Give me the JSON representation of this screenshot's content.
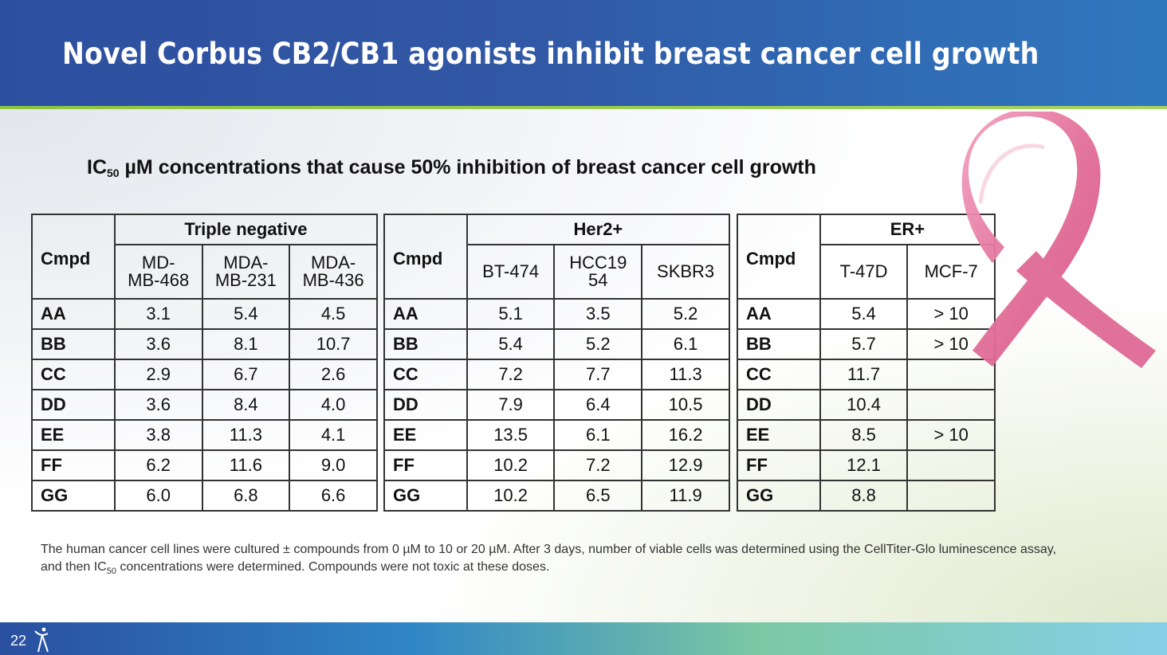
{
  "slide": {
    "title": "Novel Corbus CB2/CB1 agonists inhibit breast cancer cell growth",
    "subtitle_prefix": "IC",
    "subtitle_sub": "50",
    "subtitle_rest": " µM concentrations that cause 50% inhibition of breast cancer cell growth",
    "page_number": "22"
  },
  "tables": {
    "cmpd_label": "Cmpd",
    "compounds": [
      "AA",
      "BB",
      "CC",
      "DD",
      "EE",
      "FF",
      "GG"
    ],
    "triple_negative": {
      "group": "Triple negative",
      "columns": [
        "MD-\nMB-468",
        "MDA-\nMB-231",
        "MDA-\nMB-436"
      ],
      "rows": [
        [
          "3.1",
          "5.4",
          "4.5"
        ],
        [
          "3.6",
          "8.1",
          "10.7"
        ],
        [
          "2.9",
          "6.7",
          "2.6"
        ],
        [
          "3.6",
          "8.4",
          "4.0"
        ],
        [
          "3.8",
          "11.3",
          "4.1"
        ],
        [
          "6.2",
          "11.6",
          "9.0"
        ],
        [
          "6.0",
          "6.8",
          "6.6"
        ]
      ]
    },
    "her2": {
      "group": "Her2+",
      "columns": [
        "BT-474",
        "HCC19\n54",
        "SKBR3"
      ],
      "rows": [
        [
          "5.1",
          "3.5",
          "5.2"
        ],
        [
          "5.4",
          "5.2",
          "6.1"
        ],
        [
          "7.2",
          "7.7",
          "11.3"
        ],
        [
          "7.9",
          "6.4",
          "10.5"
        ],
        [
          "13.5",
          "6.1",
          "16.2"
        ],
        [
          "10.2",
          "7.2",
          "12.9"
        ],
        [
          "10.2",
          "6.5",
          "11.9"
        ]
      ]
    },
    "er": {
      "group": "ER+",
      "columns": [
        "T-47D",
        "MCF-7"
      ],
      "rows": [
        [
          "5.4",
          "> 10"
        ],
        [
          "5.7",
          "> 10"
        ],
        [
          "11.7",
          ""
        ],
        [
          "10.4",
          ""
        ],
        [
          "8.5",
          "> 10"
        ],
        [
          "12.1",
          ""
        ],
        [
          "8.8",
          ""
        ]
      ]
    }
  },
  "footnote": {
    "part1": "The human cancer cell lines were cultured ± compounds from 0 µM to 10 or 20 µM.  After 3 days, number of viable cells was determined using the CellTiter-Glo luminescence assay, and then IC",
    "sub": "50",
    "part2": " concentrations were determined.  Compounds were not toxic at these doses."
  },
  "colors": {
    "header_blue": "#2d4f9f",
    "accent_green": "#8cc63e",
    "ribbon_pink": "#e8779f"
  },
  "icons": [
    "breast-cancer-ribbon-icon",
    "corbus-logo-icon"
  ]
}
